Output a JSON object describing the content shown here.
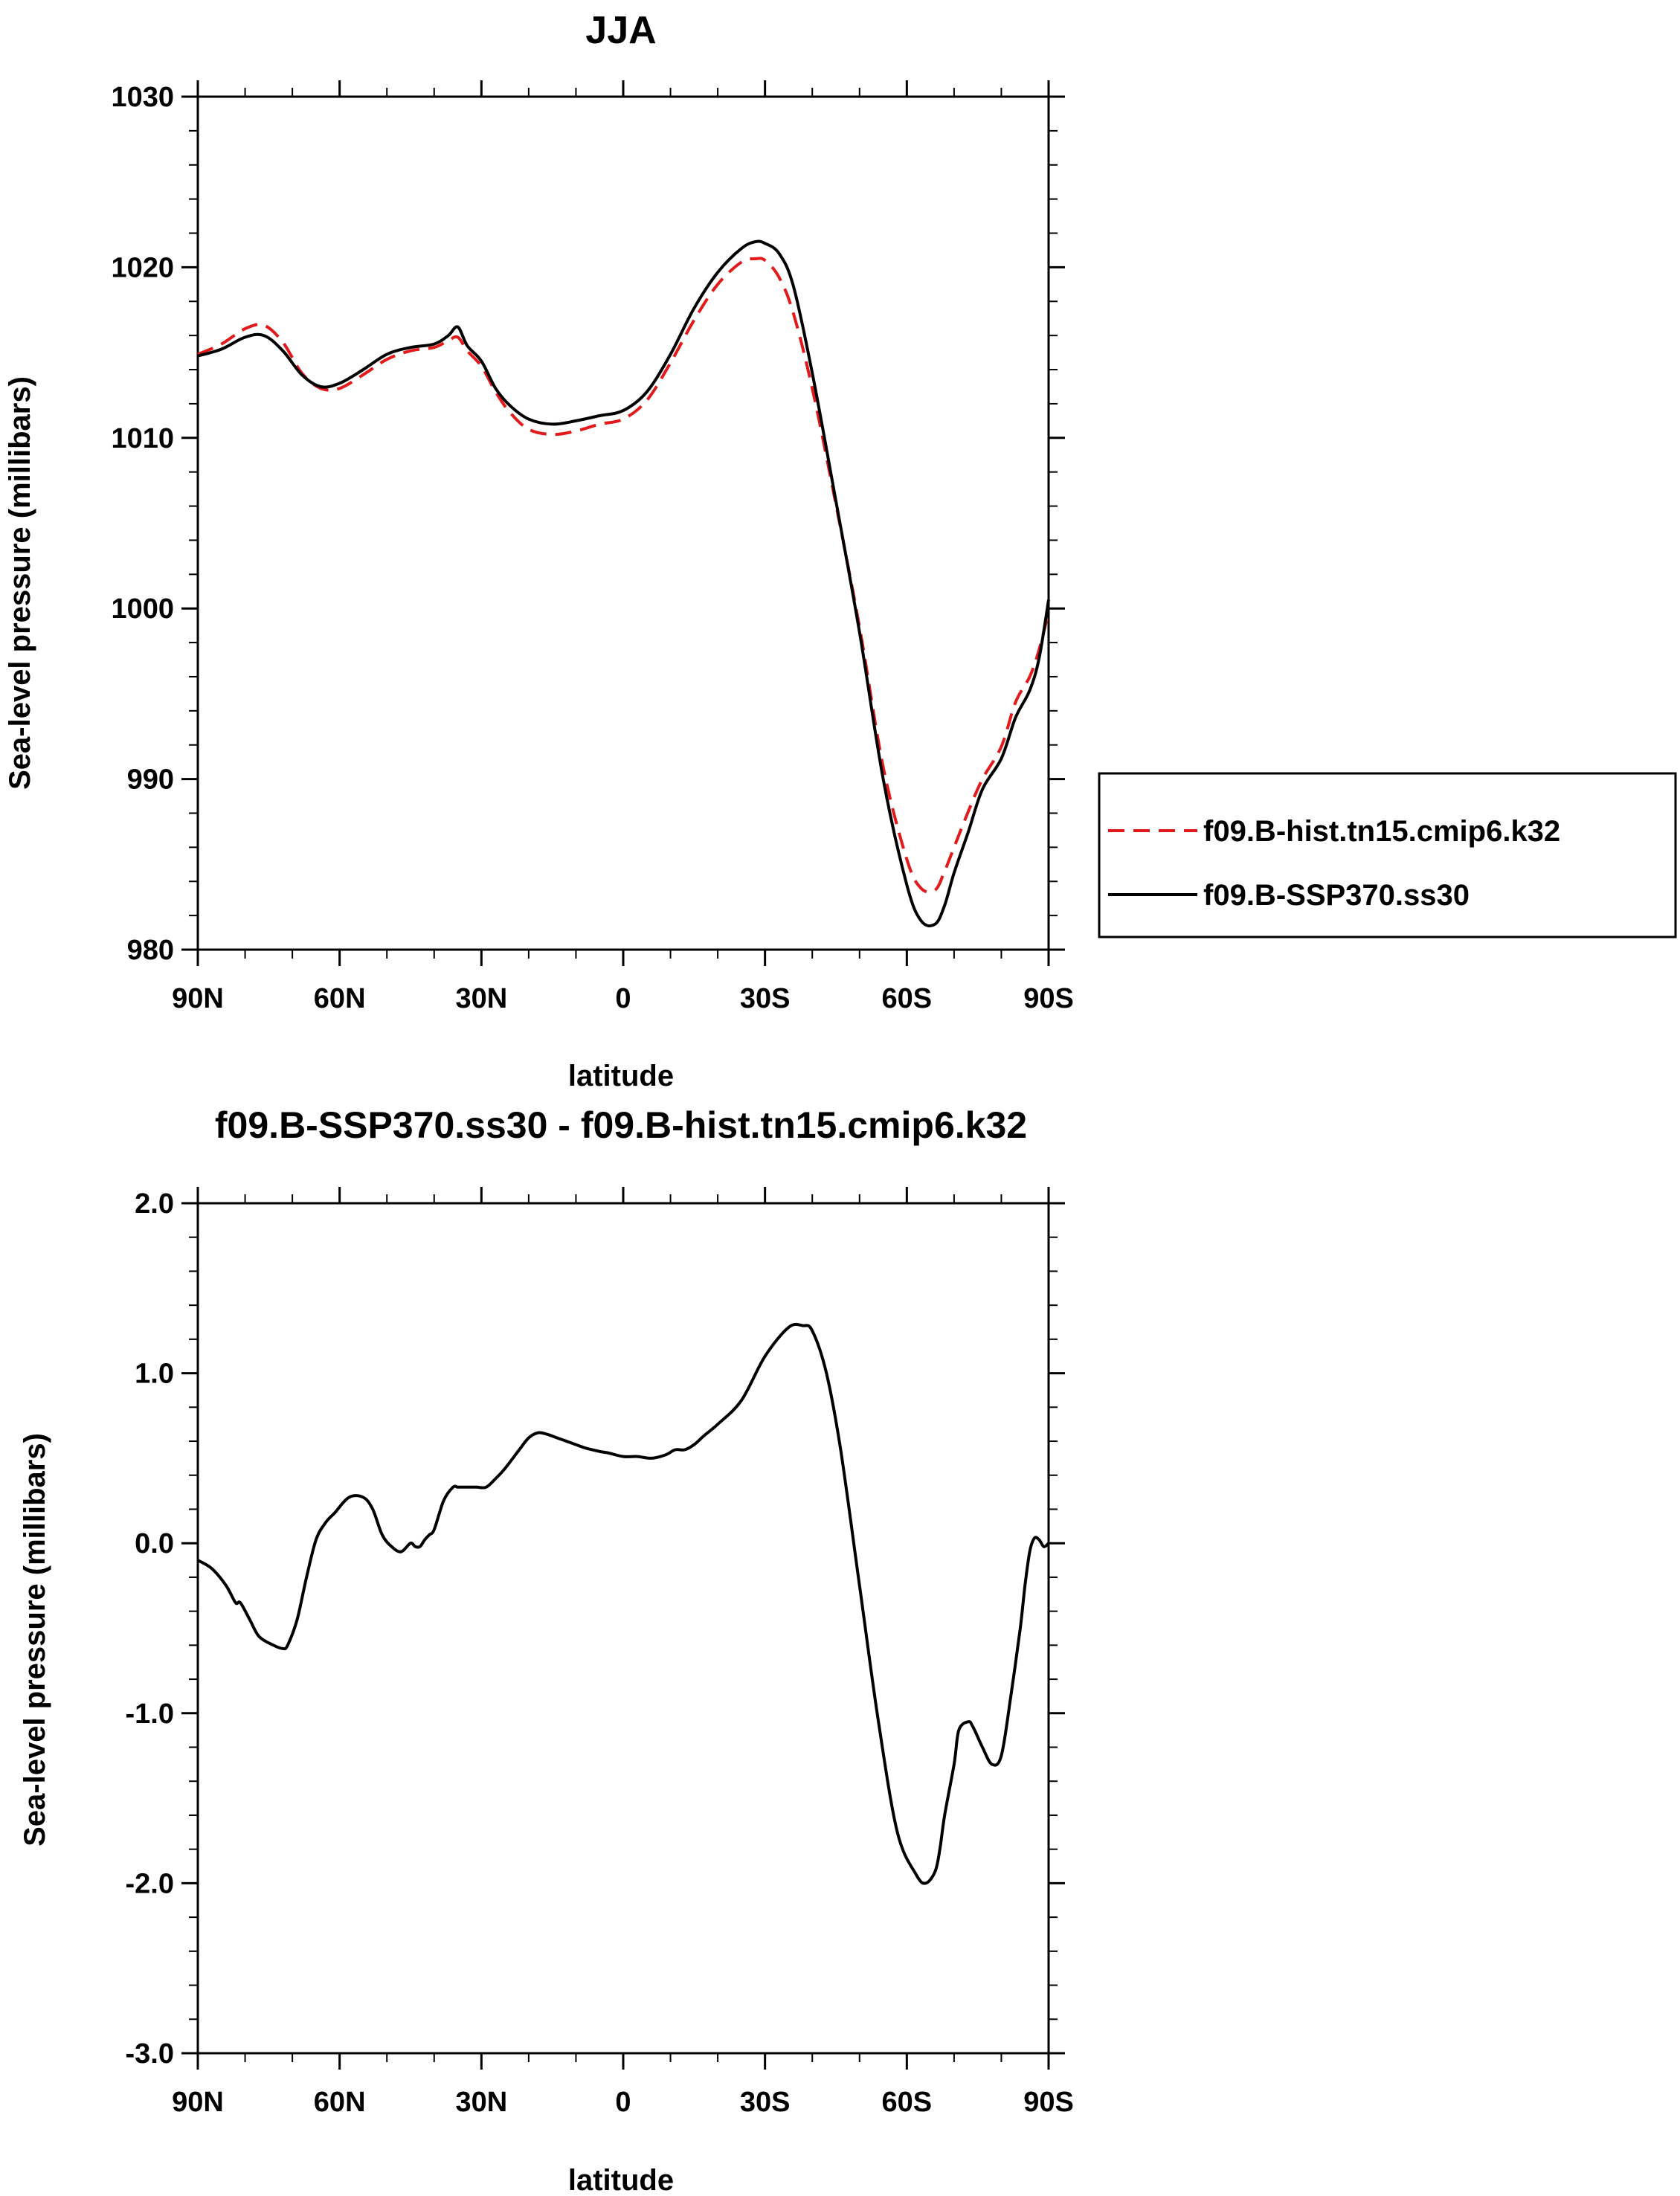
{
  "chart_data": [
    {
      "type": "line",
      "title": "JJA",
      "xlabel": "latitude",
      "ylabel": "Sea-level pressure (millibars)",
      "xlim": [
        90,
        -90
      ],
      "ylim": [
        980,
        1030
      ],
      "x_ticks": [
        {
          "value": 90,
          "label": "90N"
        },
        {
          "value": 60,
          "label": "60N"
        },
        {
          "value": 30,
          "label": "30N"
        },
        {
          "value": 0,
          "label": "0"
        },
        {
          "value": -30,
          "label": "30S"
        },
        {
          "value": -60,
          "label": "60S"
        },
        {
          "value": -90,
          "label": "90S"
        }
      ],
      "y_ticks": [
        {
          "value": 980,
          "label": "980"
        },
        {
          "value": 990,
          "label": "990"
        },
        {
          "value": 1000,
          "label": "1000"
        },
        {
          "value": 1010,
          "label": "1010"
        },
        {
          "value": 1020,
          "label": "1020"
        },
        {
          "value": 1030,
          "label": "1030"
        }
      ],
      "legend": "right",
      "series": [
        {
          "name": "f09.B-hist.tn15.cmip6.k32",
          "color": "#e31a1c",
          "dash": "dashed",
          "x": [
            90,
            85,
            80,
            76,
            72,
            68,
            64,
            60,
            55,
            50,
            45,
            40,
            37,
            35,
            33,
            30,
            27,
            24,
            20,
            15,
            10,
            5,
            0,
            -5,
            -10,
            -15,
            -20,
            -25,
            -28,
            -30,
            -33,
            -36,
            -40,
            -45,
            -50,
            -55,
            -60,
            -63,
            -66,
            -68,
            -70,
            -73,
            -76,
            -80,
            -83,
            -86,
            -88,
            -90
          ],
          "values": [
            1014.9,
            1015.5,
            1016.4,
            1016.6,
            1015.6,
            1013.8,
            1012.9,
            1012.9,
            1013.7,
            1014.6,
            1015.1,
            1015.3,
            1015.7,
            1015.9,
            1015.1,
            1014.2,
            1012.7,
            1011.5,
            1010.5,
            1010.2,
            1010.4,
            1010.8,
            1011.1,
            1012.2,
            1014.4,
            1016.9,
            1019.0,
            1020.3,
            1020.5,
            1020.4,
            1019.4,
            1017.3,
            1012.9,
            1006.1,
            998.9,
            990.7,
            985.3,
            983.6,
            983.5,
            984.6,
            986.0,
            988.1,
            990.0,
            991.9,
            994.5,
            996.0,
            997.6,
            999.8
          ]
        },
        {
          "name": "f09.B-SSP370.ss30",
          "color": "#000000",
          "dash": "solid",
          "x": [
            90,
            85,
            80,
            76,
            72,
            68,
            64,
            60,
            55,
            50,
            45,
            40,
            37,
            35,
            33,
            30,
            27,
            24,
            20,
            15,
            10,
            5,
            0,
            -5,
            -10,
            -15,
            -20,
            -25,
            -28,
            -30,
            -33,
            -36,
            -40,
            -45,
            -50,
            -55,
            -60,
            -63,
            -66,
            -68,
            -70,
            -73,
            -76,
            -80,
            -83,
            -86,
            -88,
            -90
          ],
          "values": [
            1014.8,
            1015.2,
            1015.9,
            1016.0,
            1015.1,
            1013.7,
            1013.0,
            1013.2,
            1014.0,
            1014.9,
            1015.3,
            1015.5,
            1016.0,
            1016.5,
            1015.4,
            1014.5,
            1012.9,
            1011.9,
            1011.1,
            1010.8,
            1011.0,
            1011.3,
            1011.6,
            1012.7,
            1014.9,
            1017.6,
            1019.7,
            1021.1,
            1021.5,
            1021.4,
            1020.8,
            1018.9,
            1013.8,
            1006.3,
            998.6,
            990.0,
            983.8,
            981.7,
            981.5,
            982.6,
            984.5,
            986.9,
            989.4,
            991.2,
            993.6,
            995.2,
            997.1,
            1000.5
          ]
        }
      ]
    },
    {
      "type": "line",
      "title": "f09.B-SSP370.ss30 - f09.B-hist.tn15.cmip6.k32",
      "xlabel": "latitude",
      "ylabel": "Sea-level pressure (millibars)",
      "xlim": [
        90,
        -90
      ],
      "ylim": [
        -3.0,
        2.0
      ],
      "x_ticks": [
        {
          "value": 90,
          "label": "90N"
        },
        {
          "value": 60,
          "label": "60N"
        },
        {
          "value": 30,
          "label": "30N"
        },
        {
          "value": 0,
          "label": "0"
        },
        {
          "value": -30,
          "label": "30S"
        },
        {
          "value": -60,
          "label": "60S"
        },
        {
          "value": -90,
          "label": "90S"
        }
      ],
      "y_ticks": [
        {
          "value": -3.0,
          "label": "-3.0"
        },
        {
          "value": -2.0,
          "label": "-2.0"
        },
        {
          "value": -1.0,
          "label": "-1.0"
        },
        {
          "value": 0.0,
          "label": "0.0"
        },
        {
          "value": 1.0,
          "label": "1.0"
        },
        {
          "value": 2.0,
          "label": "2.0"
        }
      ],
      "series": [
        {
          "color": "#000000",
          "dash": "solid",
          "x": [
            90,
            87,
            84,
            82,
            81,
            79,
            77,
            74,
            72,
            71,
            69,
            67,
            65,
            63,
            61,
            58,
            55,
            53,
            51,
            49,
            47,
            45,
            44,
            43,
            42,
            41,
            40,
            38,
            36,
            35,
            33,
            31,
            29,
            27,
            25,
            22,
            20,
            18,
            16,
            14,
            12,
            10,
            8,
            5,
            3,
            0,
            -3,
            -6,
            -9,
            -11,
            -13,
            -15,
            -17,
            -20,
            -25,
            -30,
            -35,
            -38,
            -40,
            -43,
            -46,
            -50,
            -54,
            -58,
            -62,
            -64,
            -66,
            -67,
            -68,
            -70,
            -71,
            -73,
            -74,
            -76,
            -78,
            -80,
            -82,
            -84,
            -85,
            -86,
            -87,
            -88,
            -89,
            -90
          ],
          "values": [
            -0.1,
            -0.15,
            -0.25,
            -0.35,
            -0.35,
            -0.45,
            -0.55,
            -0.6,
            -0.62,
            -0.6,
            -0.45,
            -0.2,
            0.02,
            0.12,
            0.18,
            0.27,
            0.27,
            0.2,
            0.05,
            -0.02,
            -0.05,
            0.0,
            -0.02,
            -0.02,
            0.02,
            0.05,
            0.08,
            0.25,
            0.33,
            0.33,
            0.33,
            0.33,
            0.33,
            0.38,
            0.44,
            0.55,
            0.62,
            0.65,
            0.64,
            0.62,
            0.6,
            0.58,
            0.56,
            0.54,
            0.53,
            0.51,
            0.51,
            0.5,
            0.52,
            0.55,
            0.55,
            0.58,
            0.63,
            0.7,
            0.84,
            1.1,
            1.27,
            1.28,
            1.25,
            1.0,
            0.55,
            -0.25,
            -1.05,
            -1.7,
            -1.95,
            -2.0,
            -1.93,
            -1.8,
            -1.6,
            -1.3,
            -1.1,
            -1.05,
            -1.08,
            -1.2,
            -1.3,
            -1.25,
            -0.9,
            -0.5,
            -0.25,
            -0.05,
            0.03,
            0.02,
            -0.02,
            0.0
          ]
        }
      ]
    }
  ]
}
